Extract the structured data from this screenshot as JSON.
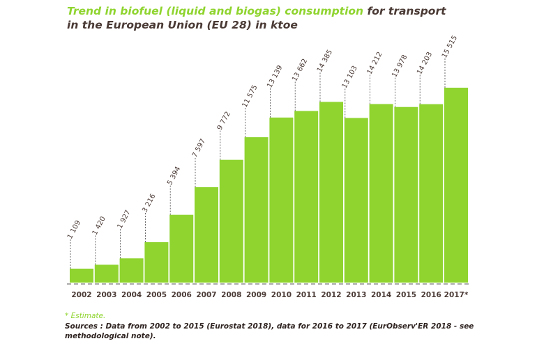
{
  "chart_data": {
    "type": "bar",
    "title_highlight": "Trend in biofuel (liquid and biogas) consumption",
    "title_rest": " for transport in the European Union (EU 28) in ktoe",
    "categories": [
      "2002",
      "2003",
      "2004",
      "2005",
      "2006",
      "2007",
      "2008",
      "2009",
      "2010",
      "2011",
      "2012",
      "2013",
      "2014",
      "2015",
      "2016",
      "2017*"
    ],
    "values": [
      1109,
      1420,
      1927,
      3216,
      5394,
      7597,
      9772,
      11575,
      13139,
      13662,
      14385,
      13103,
      14212,
      13978,
      14203,
      15515
    ],
    "value_labels": [
      "1 109",
      "1 420",
      "1 927",
      "3 216",
      "5 394",
      "7 597",
      "9 772",
      "11 575",
      "13 139",
      "13 662",
      "14 385",
      "13 103",
      "14 212",
      "13 978",
      "14 203",
      "15 515"
    ],
    "ylim": [
      0,
      15515
    ],
    "grid": false,
    "colors": {
      "bar": "#8fd42f",
      "text": "#4a3a35",
      "accent": "#8fd42f"
    }
  },
  "footnote": "* Estimate.",
  "sources": "Sources : Data from 2002 to 2015 (Eurostat 2018), data for 2016 to 2017 (EurObserv'ER 2018 - see methodological note)."
}
